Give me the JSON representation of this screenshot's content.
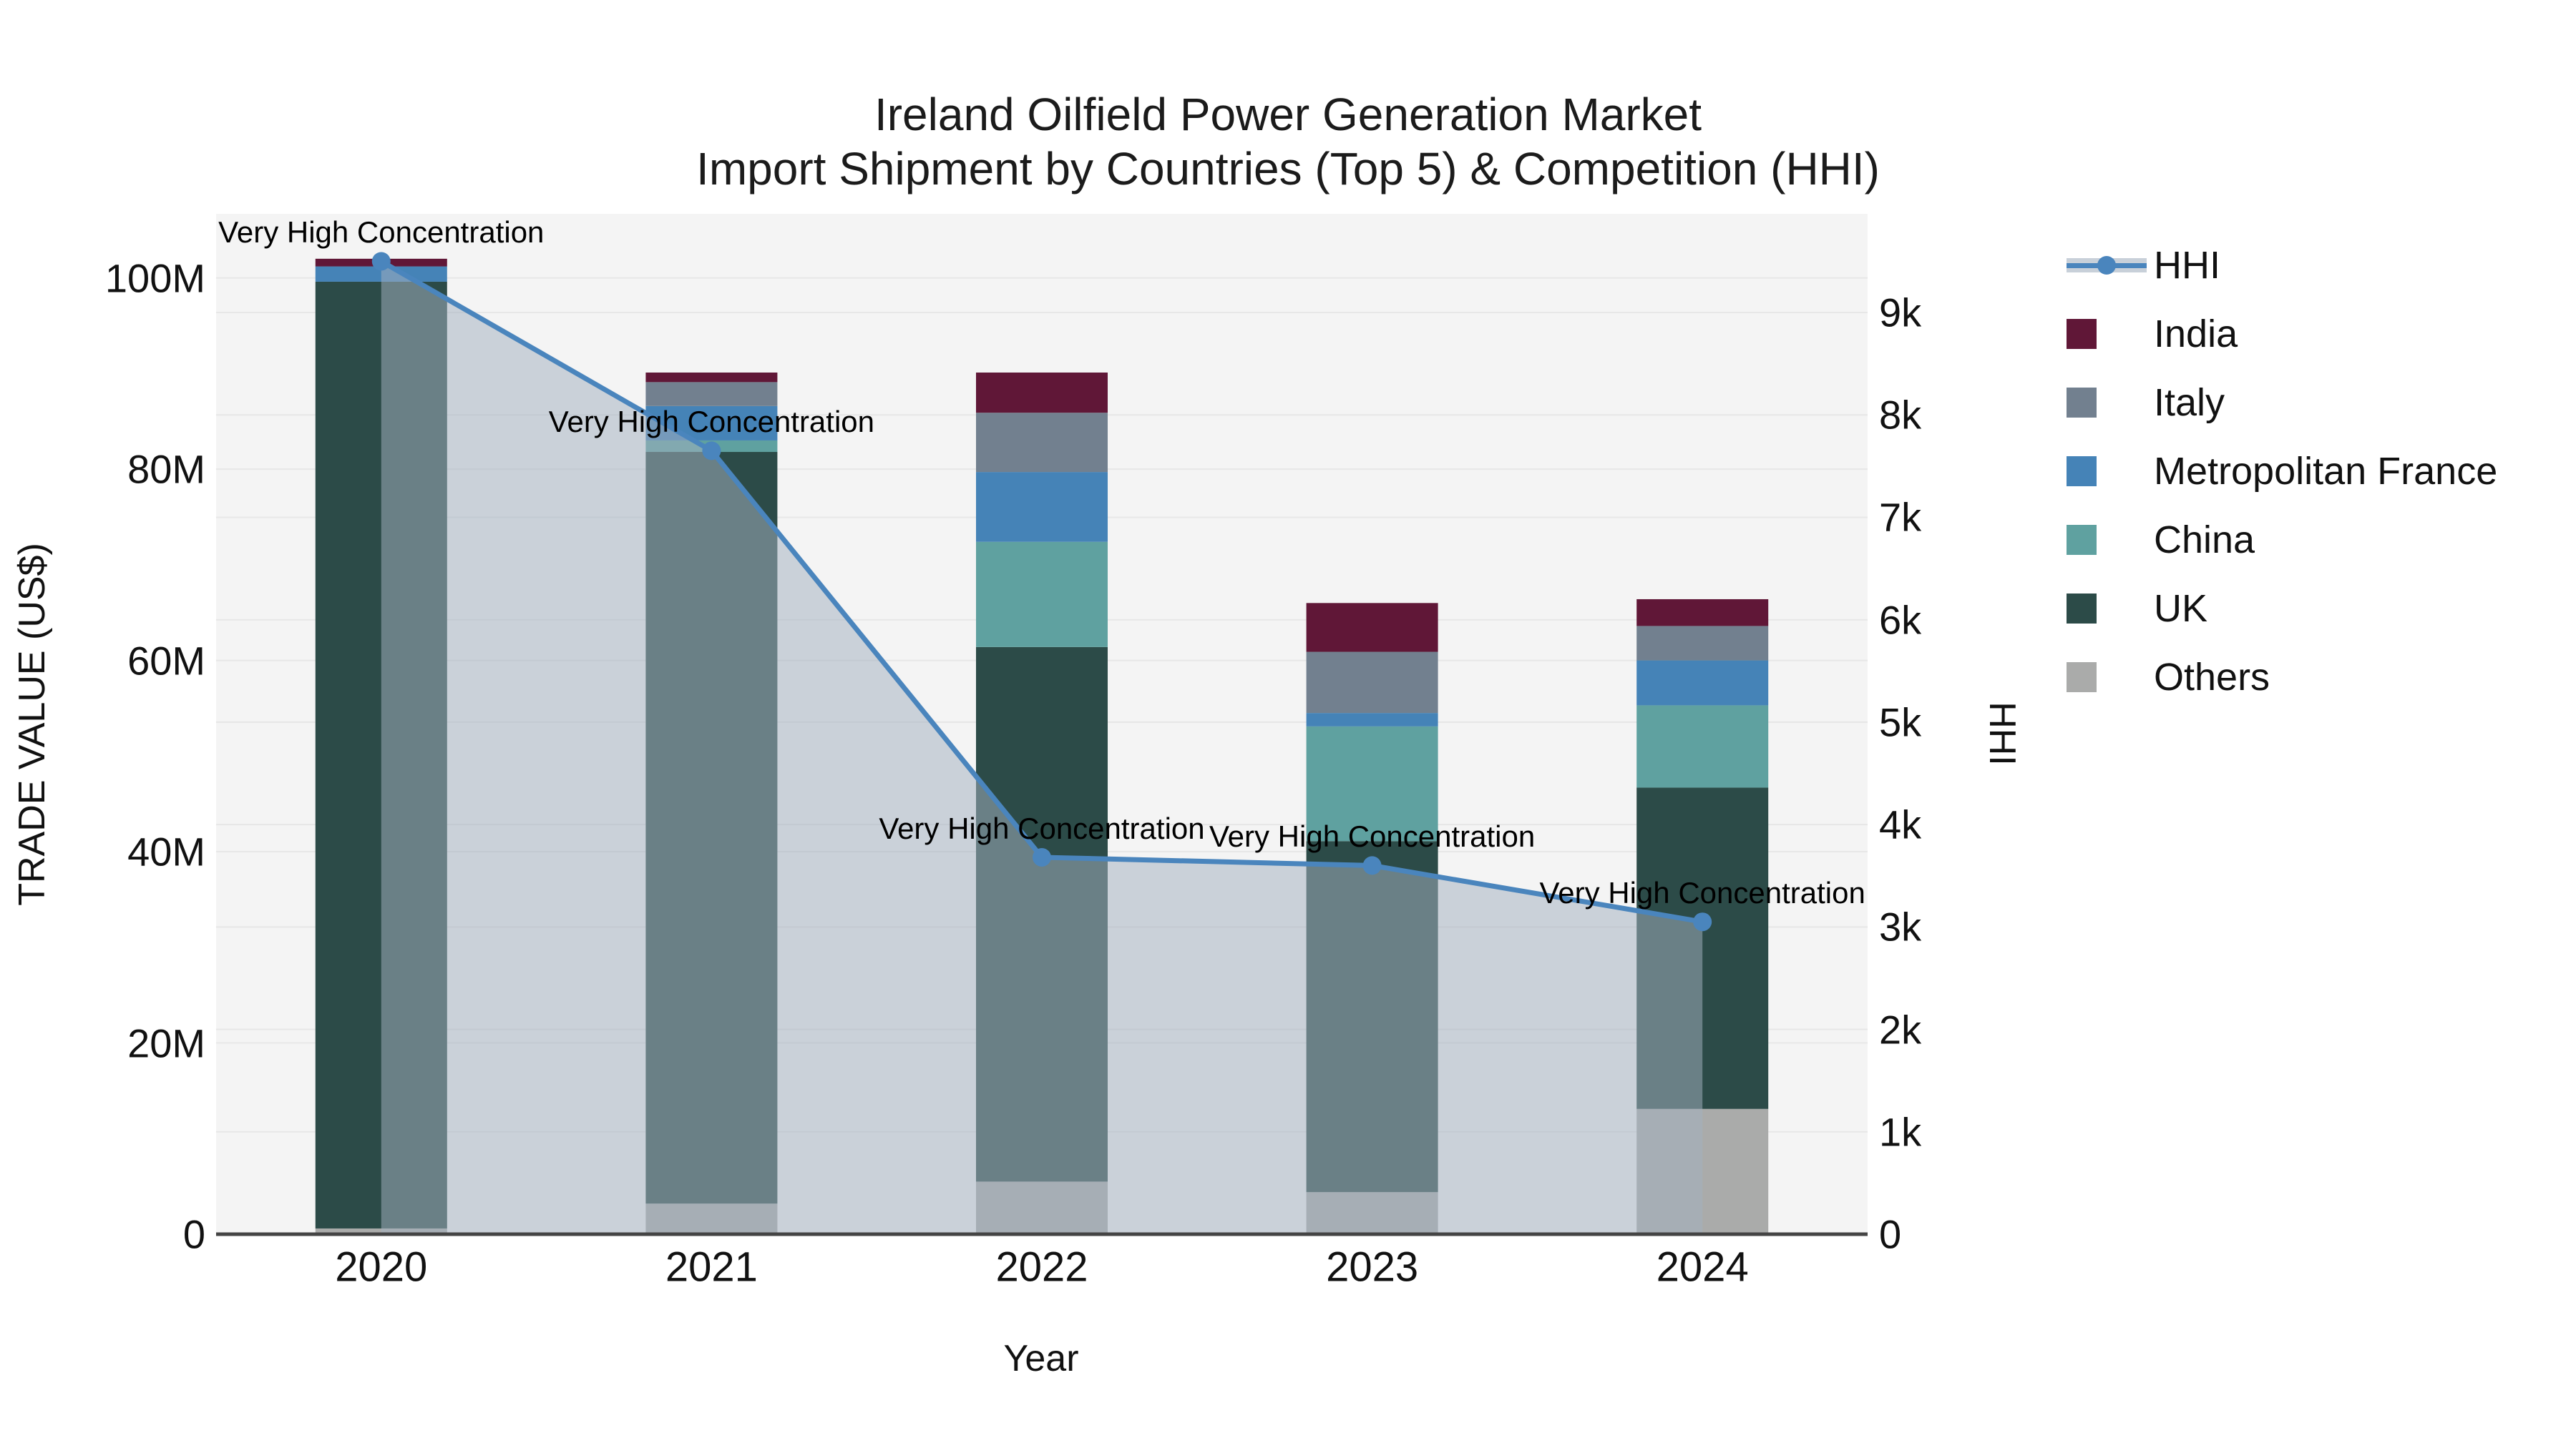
{
  "title": {
    "line1": "Ireland Oilfield Power Generation Market",
    "line2": "Import Shipment by Countries (Top 5) & Competition (HHI)"
  },
  "axes": {
    "left_label": "TRADE VALUE (US$)",
    "right_label": "HHI",
    "x_label": "Year",
    "left_ticks": [
      {
        "value": 0,
        "label": "0"
      },
      {
        "value": 20,
        "label": "20M"
      },
      {
        "value": 40,
        "label": "40M"
      },
      {
        "value": 60,
        "label": "60M"
      },
      {
        "value": 80,
        "label": "80M"
      },
      {
        "value": 100,
        "label": "100M"
      }
    ],
    "right_ticks": [
      {
        "value": 0,
        "label": "0"
      },
      {
        "value": 1000,
        "label": "1k"
      },
      {
        "value": 2000,
        "label": "2k"
      },
      {
        "value": 3000,
        "label": "3k"
      },
      {
        "value": 4000,
        "label": "4k"
      },
      {
        "value": 5000,
        "label": "5k"
      },
      {
        "value": 6000,
        "label": "6k"
      },
      {
        "value": 7000,
        "label": "7k"
      },
      {
        "value": 8000,
        "label": "8k"
      },
      {
        "value": 9000,
        "label": "9k"
      }
    ]
  },
  "chart_data": {
    "type": "bar",
    "stacked": true,
    "categories": [
      "2020",
      "2021",
      "2022",
      "2023",
      "2024"
    ],
    "bar_value_unit": "million US$",
    "series": [
      {
        "name": "India",
        "color": "#601737",
        "values": [
          0.8,
          1.0,
          4.2,
          5.1,
          2.8
        ]
      },
      {
        "name": "Italy",
        "color": "#72808f",
        "values": [
          0.0,
          2.5,
          6.2,
          6.4,
          3.6
        ]
      },
      {
        "name": "Metropolitan France",
        "color": "#4583b7",
        "values": [
          1.6,
          3.6,
          7.3,
          1.4,
          4.7
        ]
      },
      {
        "name": "China",
        "color": "#5fa1a0",
        "values": [
          0.0,
          1.2,
          11.0,
          12.0,
          8.6
        ]
      },
      {
        "name": "UK",
        "color": "#2c4b48",
        "values": [
          99.0,
          78.6,
          55.9,
          36.7,
          33.6
        ]
      },
      {
        "name": "Others",
        "color": "#aaabaa",
        "values": [
          0.6,
          3.2,
          5.5,
          4.4,
          13.1
        ]
      }
    ],
    "stack_order_bottom_to_top": [
      "Others",
      "UK",
      "China",
      "Metropolitan France",
      "Italy",
      "India"
    ],
    "bar_totals": [
      102.0,
      90.1,
      90.1,
      66.0,
      66.4
    ],
    "line_series": {
      "name": "HHI",
      "axis": "right",
      "color": "#4a85bd",
      "fill_color": "rgba(163,176,191,0.52)",
      "values": [
        9500,
        7650,
        3680,
        3600,
        3050
      ]
    },
    "annotations": [
      {
        "category": "2020",
        "text": "Very High Concentration"
      },
      {
        "category": "2021",
        "text": "Very High Concentration"
      },
      {
        "category": "2022",
        "text": "Very High Concentration"
      },
      {
        "category": "2023",
        "text": "Very High Concentration"
      },
      {
        "category": "2024",
        "text": "Very High Concentration"
      }
    ],
    "left_axis_range_M": [
      0,
      106.7
    ],
    "right_axis_range": [
      0,
      9964
    ],
    "grid": true,
    "legend_position": "right",
    "plot_background": "#f4f4f4",
    "gridline_color": "#e7e7e7",
    "axis_line_color": "#444444"
  },
  "legend": {
    "items": [
      {
        "label": "HHI",
        "marker": "line",
        "color": "#4a85bd",
        "band": "rgba(163,176,191,0.6)"
      },
      {
        "label": "India",
        "marker": "square",
        "color": "#601737"
      },
      {
        "label": "Italy",
        "marker": "square",
        "color": "#72808f"
      },
      {
        "label": "Metropolitan France",
        "marker": "square",
        "color": "#4583b7"
      },
      {
        "label": "China",
        "marker": "square",
        "color": "#5fa1a0"
      },
      {
        "label": "UK",
        "marker": "square",
        "color": "#2c4b48"
      },
      {
        "label": "Others",
        "marker": "square",
        "color": "#aaabaa"
      }
    ]
  }
}
